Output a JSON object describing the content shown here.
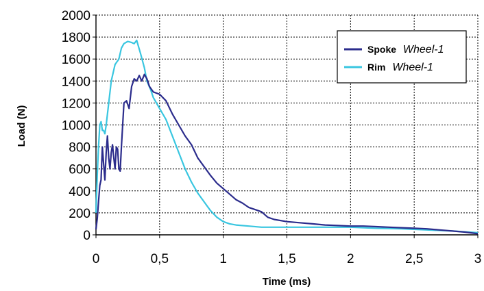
{
  "chart_data": {
    "type": "line",
    "title": "",
    "xlabel": "Time (ms)",
    "ylabel": "Load (N)",
    "xlim": [
      0,
      3
    ],
    "ylim": [
      0,
      2000
    ],
    "xticks": [
      0,
      0.5,
      1,
      1.5,
      2,
      2.5,
      3
    ],
    "xtick_labels": [
      "0",
      "0,5",
      "1",
      "1,5",
      "2",
      "2,5",
      "3"
    ],
    "yticks": [
      0,
      200,
      400,
      600,
      800,
      1000,
      1200,
      1400,
      1600,
      1800,
      2000
    ],
    "ytick_labels": [
      "0",
      "200",
      "400",
      "600",
      "800",
      "1000",
      "1200",
      "1400",
      "1600",
      "1800",
      "2000"
    ],
    "grid": true,
    "legend_position": "top-right",
    "series": [
      {
        "name": "Spoke",
        "name_italic": "Wheel-1",
        "color": "#2b2c8c",
        "x": [
          0,
          0.01,
          0.02,
          0.03,
          0.04,
          0.05,
          0.06,
          0.07,
          0.08,
          0.09,
          0.1,
          0.11,
          0.12,
          0.13,
          0.14,
          0.15,
          0.16,
          0.17,
          0.18,
          0.19,
          0.2,
          0.22,
          0.24,
          0.26,
          0.28,
          0.3,
          0.32,
          0.34,
          0.36,
          0.38,
          0.4,
          0.42,
          0.45,
          0.5,
          0.55,
          0.6,
          0.65,
          0.7,
          0.75,
          0.8,
          0.85,
          0.9,
          0.95,
          1.0,
          1.05,
          1.1,
          1.15,
          1.2,
          1.25,
          1.3,
          1.35,
          1.4,
          1.5,
          1.6,
          1.7,
          1.8,
          1.9,
          2.0,
          2.1,
          2.2,
          2.3,
          2.4,
          2.5,
          2.6,
          2.7,
          2.8,
          2.9,
          3.0
        ],
        "y": [
          50,
          150,
          300,
          450,
          500,
          800,
          650,
          500,
          750,
          900,
          700,
          600,
          750,
          820,
          700,
          600,
          800,
          780,
          600,
          580,
          800,
          1200,
          1220,
          1150,
          1350,
          1420,
          1400,
          1450,
          1400,
          1460,
          1420,
          1350,
          1300,
          1280,
          1220,
          1100,
          1000,
          900,
          820,
          700,
          620,
          540,
          470,
          420,
          370,
          320,
          290,
          250,
          230,
          210,
          160,
          140,
          120,
          110,
          100,
          90,
          85,
          80,
          80,
          75,
          70,
          65,
          60,
          55,
          45,
          35,
          25,
          10
        ]
      },
      {
        "name": "Rim",
        "name_italic": "Wheel-1",
        "color": "#39c6e0",
        "x": [
          0,
          0.01,
          0.02,
          0.03,
          0.04,
          0.05,
          0.06,
          0.07,
          0.08,
          0.1,
          0.12,
          0.15,
          0.18,
          0.2,
          0.22,
          0.25,
          0.28,
          0.3,
          0.32,
          0.35,
          0.38,
          0.4,
          0.43,
          0.45,
          0.5,
          0.55,
          0.6,
          0.65,
          0.7,
          0.75,
          0.8,
          0.85,
          0.9,
          0.95,
          1.0,
          1.05,
          1.1,
          1.2,
          1.3,
          1.4,
          1.5,
          1.6,
          1.8,
          2.0,
          2.2,
          2.4,
          2.6,
          2.8,
          3.0
        ],
        "y": [
          200,
          550,
          800,
          1000,
          1030,
          950,
          950,
          920,
          1000,
          1200,
          1400,
          1550,
          1600,
          1700,
          1740,
          1760,
          1750,
          1740,
          1770,
          1650,
          1520,
          1400,
          1320,
          1250,
          1150,
          1050,
          900,
          750,
          600,
          480,
          380,
          300,
          220,
          160,
          120,
          100,
          90,
          80,
          70,
          70,
          70,
          70,
          70,
          70,
          60,
          55,
          45,
          35,
          20
        ]
      }
    ]
  }
}
